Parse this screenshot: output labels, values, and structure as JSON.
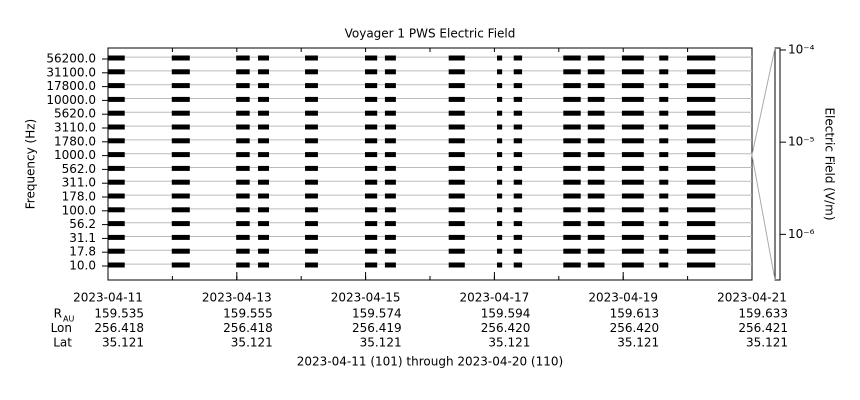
{
  "chart_data": {
    "type": "spectrogram",
    "title": "Voyager 1 PWS Electric Field",
    "subtitle": "2023-04-11 (101) through 2023-04-20 (110)",
    "y_label": "Frequency (Hz)",
    "y2_label": "Electric Field (V/m)",
    "categories": [
      "10.0",
      "17.8",
      "31.1",
      "56.2",
      "100.0",
      "178.0",
      "311.0",
      "562.0",
      "1000.0",
      "1780.0",
      "3110.0",
      "5620.0",
      "10000.0",
      "17800.0",
      "31100.0",
      "56200.0"
    ],
    "xlim": [
      "2023-04-11",
      "2023-04-21"
    ],
    "xticks": [
      "2023-04-11",
      "2023-04-13",
      "2023-04-15",
      "2023-04-17",
      "2023-04-19",
      "2023-04-21"
    ],
    "intervals": [
      [
        "2023-04-11T00:00",
        "2023-04-11T06:14"
      ],
      [
        "2023-04-11T23:46",
        "2023-04-12T06:29"
      ],
      [
        "2023-04-12T23:46",
        "2023-04-13T04:48"
      ],
      [
        "2023-04-13T07:55",
        "2023-04-13T12:00"
      ],
      [
        "2023-04-14T01:26",
        "2023-04-14T06:14"
      ],
      [
        "2023-04-14T23:46",
        "2023-04-15T04:19"
      ],
      [
        "2023-04-15T07:12",
        "2023-04-15T11:17"
      ],
      [
        "2023-04-16T06:58",
        "2023-04-16T12:58"
      ],
      [
        "2023-04-17T00:58",
        "2023-04-17T02:53"
      ],
      [
        "2023-04-17T07:12",
        "2023-04-17T10:19"
      ],
      [
        "2023-04-18T01:41",
        "2023-04-18T08:10"
      ],
      [
        "2023-04-18T10:48",
        "2023-04-18T17:02"
      ],
      [
        "2023-04-18T23:31",
        "2023-04-19T07:41"
      ],
      [
        "2023-04-19T13:26",
        "2023-04-19T16:48"
      ],
      [
        "2023-04-19T23:46",
        "2023-04-20T10:19"
      ]
    ],
    "color": "#000000",
    "y2_log": true,
    "y2lim": [
      3.2e-07,
      0.000105
    ],
    "y2ticks": [
      {
        "value": 0.0001,
        "label": "10⁻⁴"
      },
      {
        "value": 1e-05,
        "label": "10⁻⁵"
      },
      {
        "value": 1e-06,
        "label": "10⁻⁶"
      }
    ],
    "ephemeris": [
      {
        "label": "R",
        "sub": "AU",
        "values": [
          "159.535",
          "159.555",
          "159.574",
          "159.594",
          "159.613",
          "159.633"
        ]
      },
      {
        "label": "Lon",
        "values": [
          "256.418",
          "256.418",
          "256.419",
          "256.420",
          "256.420",
          "256.421"
        ]
      },
      {
        "label": "Lat",
        "values": [
          "35.121",
          "35.121",
          "35.121",
          "35.121",
          "35.121",
          "35.121"
        ]
      }
    ]
  }
}
